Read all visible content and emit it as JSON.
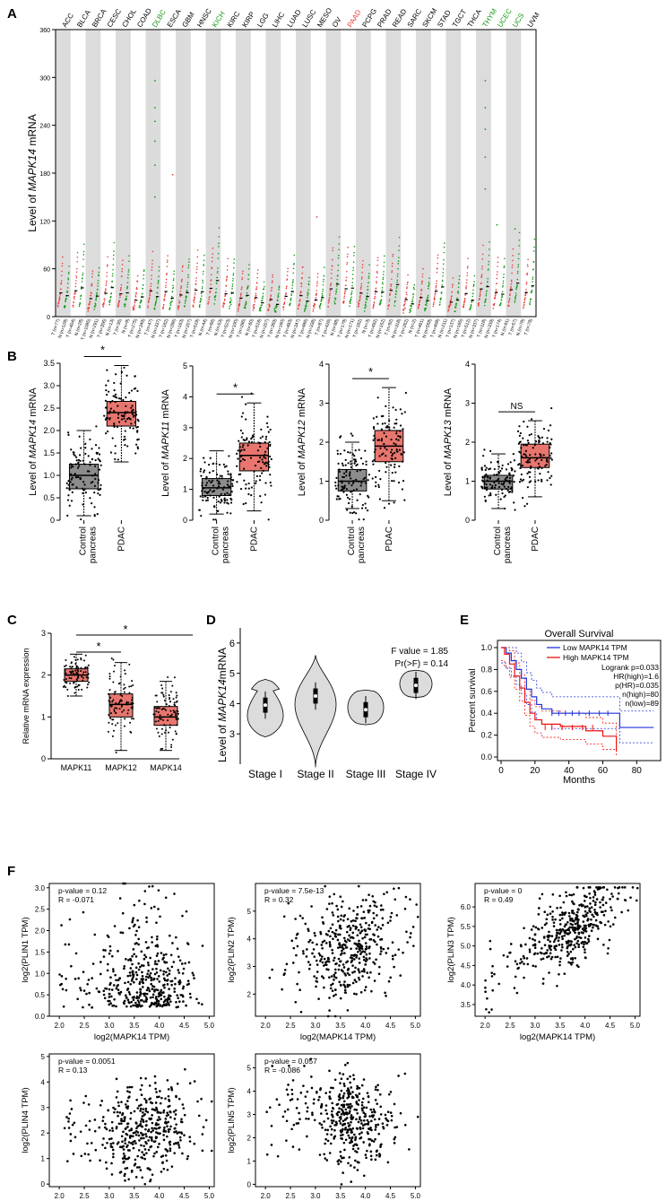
{
  "colors": {
    "tumor": "#e8403f",
    "normal": "#1a9a1a",
    "box_red": "#e8766f",
    "box_grey": "#8c8c8c",
    "band": "#dcdcdc",
    "km_low": "#2233dd",
    "km_high": "#ee1111"
  },
  "panels": {
    "a": "A",
    "b": "B",
    "c": "C",
    "d": "D",
    "e": "E",
    "f": "F"
  },
  "panel_a": {
    "ylabel_pre": "Level of ",
    "ylabel_gene": "MAPK14",
    "ylabel_post": " mRNA",
    "yticks": [
      "0",
      "60",
      "120",
      "180",
      "240",
      "300",
      "360"
    ],
    "cancers": [
      "ACC",
      "BLCA",
      "BRCA",
      "CESC",
      "CHOL",
      "COAD",
      "DLBC",
      "ESCA",
      "GBM",
      "HNSC",
      "KICH",
      "KIRC",
      "KIRP",
      "LGG",
      "LIHC",
      "LUAD",
      "LUSC",
      "MESO",
      "OV",
      "PAAD",
      "PCPG",
      "PRAD",
      "READ",
      "SARC",
      "SKCM",
      "STAD",
      "TGCT",
      "THCA",
      "THYM",
      "UCEC",
      "UCS",
      "UVM"
    ],
    "cancer_status": [
      "n",
      "n",
      "n",
      "n",
      "n",
      "n",
      "g",
      "n",
      "n",
      "n",
      "g",
      "n",
      "n",
      "n",
      "n",
      "n",
      "n",
      "n",
      "n",
      "r",
      "n",
      "n",
      "n",
      "n",
      "n",
      "n",
      "n",
      "n",
      "g",
      "g",
      "g",
      "n"
    ],
    "bottom_labels": [
      "T (n=77)",
      "N (n=128)",
      "T (n=404)",
      "N (n=28)",
      "T (n=1085)",
      "N (n=291)",
      "T (n=306)",
      "N (n=13)",
      "T (n=36)",
      "N (n=9)",
      "T (n=275)",
      "N (n=349)",
      "T (n=47)",
      "N (n=337)",
      "T (n=182)",
      "N (n=286)",
      "T (n=163)",
      "N (n=207)",
      "T (n=519)",
      "N (n=44)",
      "T (n=66)",
      "N (n=53)",
      "T (n=523)",
      "N (n=100)",
      "T (n=286)",
      "N (n=60)",
      "T (n=518)",
      "N (n=207)",
      "T (n=369)",
      "N (n=160)",
      "T (n=483)",
      "N (n=347)",
      "T (n=486)",
      "N (n=338)",
      "T (n=87)",
      "T (n=426)",
      "N (n=88)",
      "T (n=179)",
      "N (n=171)",
      "T (n=182)",
      "N (n=3)",
      "T (n=492)",
      "N (n=152)",
      "T (n=92)",
      "N (n=318)",
      "T (n=262)",
      "N (n=2)",
      "T (n=461)",
      "N (n=558)",
      "T (n=408)",
      "N (n=211)",
      "T (n=137)",
      "N (n=165)",
      "T (n=512)",
      "N (n=337)",
      "T (n=118)",
      "N (n=339)",
      "T (n=174)",
      "N (n=91)",
      "T (n=57)",
      "N (n=78)",
      "T (n=79)"
    ]
  },
  "panel_b": [
    {
      "gene": "MAPK14",
      "yticks": [
        "0",
        "0.5",
        "1.0",
        "1.5",
        "2.0",
        "2.5",
        "3.0",
        "3.5"
      ],
      "sig": "*",
      "groups": [
        "Control\npancreas",
        "PDAC"
      ]
    },
    {
      "gene": "MAPK11",
      "yticks": [
        "0",
        "1",
        "2",
        "3",
        "4",
        "5"
      ],
      "sig": "*",
      "groups": [
        "Control\npancreas",
        "PDAC"
      ]
    },
    {
      "gene": "MAPK12",
      "yticks": [
        "0",
        "1",
        "2",
        "3",
        "4"
      ],
      "sig": "*",
      "groups": [
        "Control\npancreas",
        "PDAC"
      ]
    },
    {
      "gene": "MAPK13",
      "yticks": [
        "0",
        "1",
        "2",
        "3",
        "4"
      ],
      "sig": "NS",
      "groups": [
        "Control\npancreas",
        "PDAC"
      ]
    }
  ],
  "panel_b_labels": {
    "pre": "Level of ",
    "post": " mRNA",
    "control_l1": "Control",
    "control_l2": "pancreas",
    "pdac": "PDAC"
  },
  "panel_c": {
    "ylabel": "Relative mRNA expression",
    "yticks": [
      "0",
      "1",
      "2",
      "3"
    ],
    "groups": [
      "MAPK11",
      "MAPK12",
      "MAPK14"
    ],
    "sig1": "*",
    "sig2": "*"
  },
  "panel_d": {
    "ylabel_pre": "Level of ",
    "ylabel_gene": "MAPK14",
    "ylabel_post": "mRNA",
    "yticks": [
      "3",
      "4",
      "5",
      "6"
    ],
    "stages": [
      "Stage I",
      "Stage II",
      "Stage III",
      "Stage IV"
    ],
    "fvalue": "F value = 1.85",
    "pr": "Pr(>F) = 0.14"
  },
  "panel_e": {
    "title": "Overall Survival",
    "ylabel": "Percent survival",
    "xlabel": "Months",
    "yticks": [
      "0.0",
      "0.2",
      "0.4",
      "0.6",
      "0.8",
      "1.0"
    ],
    "xticks": [
      "0",
      "20",
      "40",
      "60",
      "80"
    ],
    "legend_low": "Low MAPK14 TPM",
    "legend_high": "High MAPK14 TPM",
    "stats": [
      "Logrank p=0.033",
      "HR(high)=1.6",
      "p(HR)=0.035",
      "n(high)=80",
      "n(low)=89"
    ]
  },
  "panel_f": [
    {
      "ylabel": "log2(PLIN1 TPM)",
      "xlabel": "log2(MAPK14 TPM)",
      "pval": "p-value = 0.12",
      "r": "R = -0.071",
      "yticks": [
        "0.0",
        "0.5",
        "1.0",
        "1.5",
        "2.0",
        "2.5",
        "3.0"
      ],
      "xticks": [
        "2.0",
        "2.5",
        "3.0",
        "3.5",
        "4.0",
        "4.5",
        "5.0"
      ]
    },
    {
      "ylabel": "log2(PLIN2 TPM)",
      "xlabel": "log2(MAPK14 TPM)",
      "pval": "p-value = 7.5e-13",
      "r": "R = 0.32",
      "yticks": [
        "2",
        "3",
        "4",
        "5"
      ],
      "xticks": [
        "2.0",
        "2.5",
        "3.0",
        "3.5",
        "4.0",
        "4.5",
        "5.0"
      ]
    },
    {
      "ylabel": "log2(PLIN3 TPM)",
      "xlabel": "log2(MAPK14 TPM)",
      "pval": "p-value = 0",
      "r": "R = 0.49",
      "yticks": [
        "3.5",
        "4.0",
        "4.5",
        "5.0",
        "5.5",
        "6.0"
      ],
      "xticks": [
        "2.0",
        "2.5",
        "3.0",
        "3.5",
        "4.0",
        "4.5",
        "5.0"
      ]
    },
    {
      "ylabel": "log2(PLIN4 TPM)",
      "xlabel": "log2(MAPK14 TPM)",
      "pval": "p-value = 0.0051",
      "r": "R = 0.13",
      "yticks": [
        "0",
        "1",
        "2",
        "3",
        "4",
        "5"
      ],
      "xticks": [
        "2.0",
        "2.5",
        "3.0",
        "3.5",
        "4.0",
        "4.5",
        "5.0"
      ]
    },
    {
      "ylabel": "log2(PLIN5 TPM)",
      "xlabel": "log2(MAPK14 TPM)",
      "pval": "p-value = 0.057",
      "r": "R = -0.086",
      "yticks": [
        "0",
        "1",
        "2",
        "3",
        "4",
        "5"
      ],
      "xticks": [
        "2.0",
        "2.5",
        "3.0",
        "3.5",
        "4.0",
        "4.5",
        "5.0"
      ]
    }
  ]
}
